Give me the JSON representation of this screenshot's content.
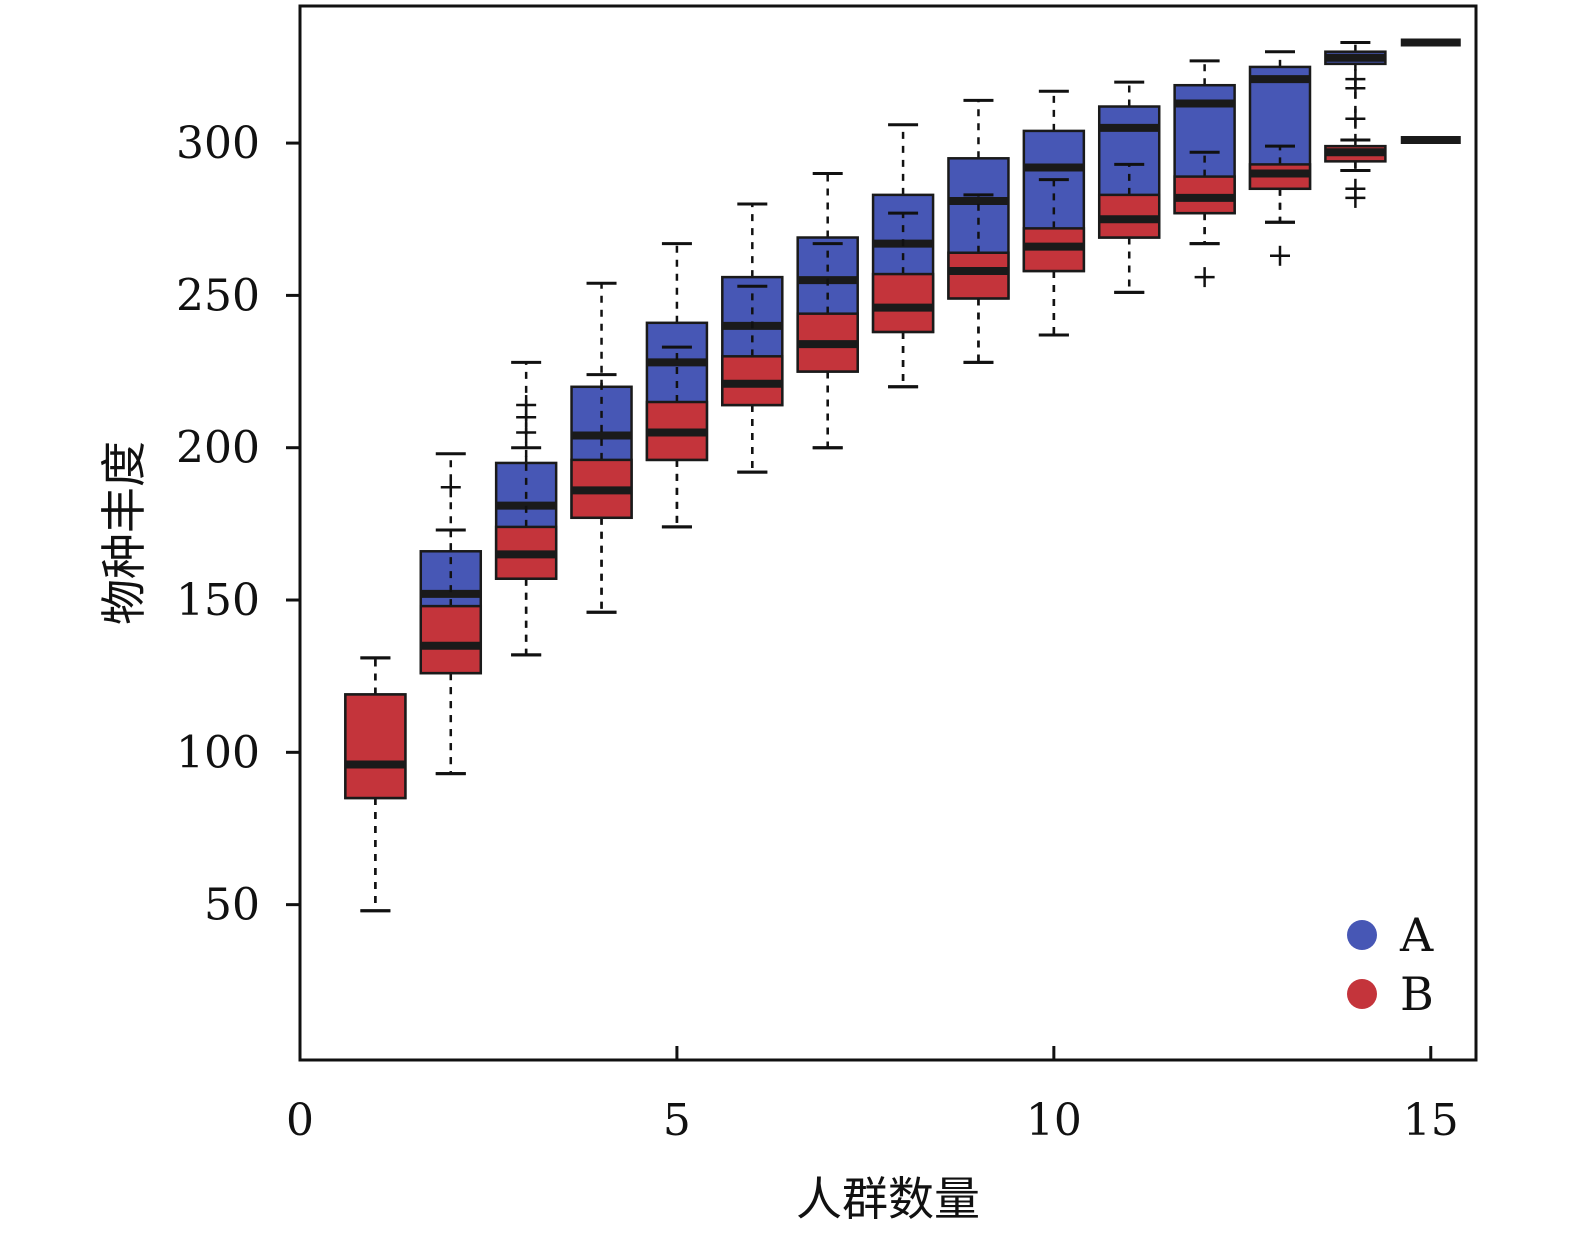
{
  "chart_data": {
    "type": "box",
    "title": "",
    "xlabel": "人群数量",
    "ylabel": "物种丰度",
    "xlim": [
      0,
      15.6
    ],
    "ylim": [
      -1,
      345
    ],
    "xticks": [
      0,
      5,
      10,
      15
    ],
    "yticks": [
      50,
      100,
      150,
      200,
      250,
      300
    ],
    "grid": false,
    "legend_position": "bottom-right",
    "series": [
      {
        "name": "A",
        "color": "#4757B5",
        "boxes": [
          {
            "x": 1,
            "whisker_low": 48,
            "q1": 85,
            "median": 96,
            "q3": 119,
            "whisker_high": 131,
            "outliers": []
          },
          {
            "x": 2,
            "whisker_low": 93,
            "q1": 126,
            "median": 152,
            "q3": 166,
            "whisker_high": 198,
            "outliers": [
              187
            ]
          },
          {
            "x": 3,
            "whisker_low": 132,
            "q1": 157,
            "median": 181,
            "q3": 195,
            "whisker_high": 228,
            "outliers": [
              214,
              210,
              205
            ]
          },
          {
            "x": 4,
            "whisker_low": 146,
            "q1": 177,
            "median": 204,
            "q3": 220,
            "whisker_high": 254,
            "outliers": []
          },
          {
            "x": 5,
            "whisker_low": 174,
            "q1": 196,
            "median": 228,
            "q3": 241,
            "whisker_high": 267,
            "outliers": []
          },
          {
            "x": 6,
            "whisker_low": 192,
            "q1": 214,
            "median": 240,
            "q3": 256,
            "whisker_high": 280,
            "outliers": []
          },
          {
            "x": 7,
            "whisker_low": 200,
            "q1": 225,
            "median": 255,
            "q3": 269,
            "whisker_high": 290,
            "outliers": []
          },
          {
            "x": 8,
            "whisker_low": 220,
            "q1": 238,
            "median": 267,
            "q3": 283,
            "whisker_high": 306,
            "outliers": []
          },
          {
            "x": 9,
            "whisker_low": 228,
            "q1": 249,
            "median": 281,
            "q3": 295,
            "whisker_high": 314,
            "outliers": []
          },
          {
            "x": 10,
            "whisker_low": 237,
            "q1": 258,
            "median": 292,
            "q3": 304,
            "whisker_high": 317,
            "outliers": []
          },
          {
            "x": 11,
            "whisker_low": 251,
            "q1": 269,
            "median": 305,
            "q3": 312,
            "whisker_high": 320,
            "outliers": []
          },
          {
            "x": 12,
            "whisker_low": 267,
            "q1": 277,
            "median": 313,
            "q3": 319,
            "whisker_high": 327,
            "outliers": []
          },
          {
            "x": 13,
            "whisker_low": 274,
            "q1": 285,
            "median": 321,
            "q3": 325,
            "whisker_high": 330,
            "outliers": []
          },
          {
            "x": 14,
            "whisker_low": 291,
            "q1": 326,
            "median": 328,
            "q3": 330,
            "whisker_high": 333,
            "outliers": [
              321,
              318,
              308,
              285,
              282
            ]
          },
          {
            "x": 15,
            "whisker_low": 333,
            "q1": 333,
            "median": 333,
            "q3": 333,
            "whisker_high": 333,
            "outliers": []
          }
        ]
      },
      {
        "name": "B",
        "color": "#C4343B",
        "boxes": [
          {
            "x": 1,
            "whisker_low": 48,
            "q1": 85,
            "median": 96,
            "q3": 119,
            "whisker_high": 131,
            "outliers": []
          },
          {
            "x": 2,
            "whisker_low": 93,
            "q1": 126,
            "median": 135,
            "q3": 148,
            "whisker_high": 173,
            "outliers": []
          },
          {
            "x": 3,
            "whisker_low": 132,
            "q1": 157,
            "median": 165,
            "q3": 174,
            "whisker_high": 200,
            "outliers": []
          },
          {
            "x": 4,
            "whisker_low": 146,
            "q1": 177,
            "median": 186,
            "q3": 196,
            "whisker_high": 224,
            "outliers": []
          },
          {
            "x": 5,
            "whisker_low": 174,
            "q1": 196,
            "median": 205,
            "q3": 215,
            "whisker_high": 233,
            "outliers": []
          },
          {
            "x": 6,
            "whisker_low": 192,
            "q1": 214,
            "median": 221,
            "q3": 230,
            "whisker_high": 253,
            "outliers": []
          },
          {
            "x": 7,
            "whisker_low": 200,
            "q1": 225,
            "median": 234,
            "q3": 244,
            "whisker_high": 267,
            "outliers": []
          },
          {
            "x": 8,
            "whisker_low": 220,
            "q1": 238,
            "median": 246,
            "q3": 257,
            "whisker_high": 277,
            "outliers": []
          },
          {
            "x": 9,
            "whisker_low": 228,
            "q1": 249,
            "median": 258,
            "q3": 264,
            "whisker_high": 283,
            "outliers": []
          },
          {
            "x": 10,
            "whisker_low": 237,
            "q1": 258,
            "median": 266,
            "q3": 272,
            "whisker_high": 288,
            "outliers": []
          },
          {
            "x": 11,
            "whisker_low": 251,
            "q1": 269,
            "median": 275,
            "q3": 283,
            "whisker_high": 293,
            "outliers": []
          },
          {
            "x": 12,
            "whisker_low": 267,
            "q1": 277,
            "median": 282,
            "q3": 289,
            "whisker_high": 297,
            "outliers": [
              256
            ]
          },
          {
            "x": 13,
            "whisker_low": 274,
            "q1": 285,
            "median": 290,
            "q3": 293,
            "whisker_high": 299,
            "outliers": [
              263
            ]
          },
          {
            "x": 14,
            "whisker_low": 291,
            "q1": 294,
            "median": 297,
            "q3": 299,
            "whisker_high": 301,
            "outliers": []
          },
          {
            "x": 15,
            "whisker_low": 301,
            "q1": 301,
            "median": 301,
            "q3": 301,
            "whisker_high": 301,
            "outliers": []
          }
        ]
      }
    ]
  }
}
